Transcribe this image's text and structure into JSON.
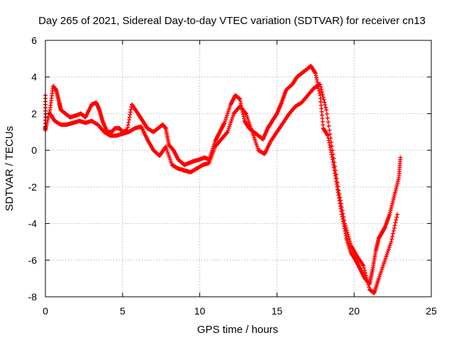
{
  "chart_data": {
    "type": "scatter",
    "title": "Day 265 of 2021, Sidereal Day-to-day VTEC variation (SDTVAR) for receiver cn13",
    "xlabel": "GPS time / hours",
    "ylabel": "SDTVAR / TECUs",
    "xlim": [
      0,
      25
    ],
    "ylim": [
      -8,
      6
    ],
    "xticks": [
      "0",
      "5",
      "10",
      "15",
      "20",
      "25"
    ],
    "yticks": [
      "-8",
      "-6",
      "-4",
      "-2",
      "0",
      "2",
      "4",
      "6"
    ],
    "grid": true,
    "marker": "+",
    "color": "#ff0000",
    "series": [
      {
        "x": [
          0.0,
          0.0,
          0.0,
          0.3,
          0.5,
          0.7,
          0.9,
          1.0,
          1.3,
          1.6,
          2.0,
          2.3,
          2.6,
          3.0,
          3.3,
          3.5,
          3.7,
          4.0,
          4.3,
          4.5,
          4.8,
          5.0,
          5.3,
          5.6,
          6.0,
          6.3,
          6.6,
          7.0,
          7.3,
          7.6,
          7.8,
          8.0,
          8.3,
          8.6,
          9.0,
          9.3,
          9.6,
          10.0,
          10.3,
          10.6,
          11.0,
          11.3,
          11.6,
          12.0,
          12.3,
          12.6,
          12.9,
          13.2,
          13.5,
          13.8,
          14.1,
          14.4,
          14.7,
          15.0,
          15.3,
          15.6,
          16.0,
          16.3,
          16.6,
          16.9,
          17.2,
          17.5,
          17.8,
          18.0,
          18.3,
          18.6,
          18.9,
          19.2,
          19.5,
          19.8,
          20.1,
          20.4,
          20.7,
          21.0,
          21.2,
          21.4,
          21.6,
          21.8,
          22.0,
          22.3,
          22.6,
          22.9,
          23.0
        ],
        "y": [
          3.0,
          1.3,
          1.1,
          2.2,
          3.5,
          3.3,
          2.6,
          2.2,
          2.0,
          1.8,
          1.9,
          2.0,
          1.8,
          2.5,
          2.6,
          2.2,
          1.6,
          1.0,
          1.0,
          1.2,
          1.2,
          1.0,
          1.1,
          2.5,
          2.0,
          1.6,
          1.2,
          1.0,
          1.2,
          1.4,
          1.2,
          0.3,
          0.0,
          -0.5,
          -0.8,
          -0.7,
          -0.6,
          -0.5,
          -0.4,
          -0.5,
          0.5,
          1.0,
          1.5,
          2.5,
          3.0,
          2.8,
          1.6,
          1.2,
          1.0,
          0.8,
          0.6,
          1.2,
          1.6,
          2.0,
          2.6,
          3.3,
          3.6,
          4.0,
          4.2,
          4.4,
          4.6,
          4.2,
          3.0,
          1.2,
          0.8,
          -0.5,
          -2.0,
          -3.5,
          -4.8,
          -5.6,
          -6.0,
          -6.5,
          -7.0,
          -7.3,
          -6.5,
          -5.5,
          -4.8,
          -4.5,
          -4.2,
          -3.5,
          -2.5,
          -1.5,
          -0.4
        ]
      },
      {
        "x": [
          0.3,
          0.6,
          1.0,
          1.4,
          1.8,
          2.2,
          2.6,
          3.0,
          3.4,
          3.8,
          4.2,
          4.6,
          5.0,
          5.4,
          5.8,
          6.2,
          6.6,
          7.0,
          7.4,
          7.8,
          8.2,
          8.6,
          9.0,
          9.4,
          9.8,
          10.2,
          10.6,
          11.0,
          11.4,
          11.8,
          12.2,
          12.6,
          13.0,
          13.4,
          13.8,
          14.2,
          14.6,
          15.0,
          15.4,
          15.8,
          16.2,
          16.6,
          17.0,
          17.4,
          17.8,
          18.2,
          18.6,
          19.0,
          19.4,
          19.8,
          20.2,
          20.6,
          21.0,
          21.3,
          21.6,
          22.0,
          22.4,
          22.8
        ],
        "y": [
          2.0,
          1.6,
          1.4,
          1.4,
          1.5,
          1.6,
          1.5,
          1.6,
          1.4,
          1.0,
          0.8,
          0.8,
          0.9,
          1.0,
          1.2,
          1.3,
          0.6,
          0.0,
          -0.3,
          0.2,
          -0.8,
          -1.0,
          -1.1,
          -1.2,
          -1.0,
          -0.8,
          -0.7,
          0.2,
          0.6,
          1.0,
          2.0,
          2.4,
          2.0,
          1.0,
          0.0,
          -0.2,
          0.5,
          1.0,
          1.5,
          2.0,
          2.4,
          2.6,
          3.0,
          3.4,
          3.6,
          2.2,
          0.0,
          -2.2,
          -4.0,
          -5.2,
          -5.8,
          -6.3,
          -7.6,
          -7.8,
          -7.0,
          -6.0,
          -5.0,
          -3.5
        ]
      }
    ]
  }
}
